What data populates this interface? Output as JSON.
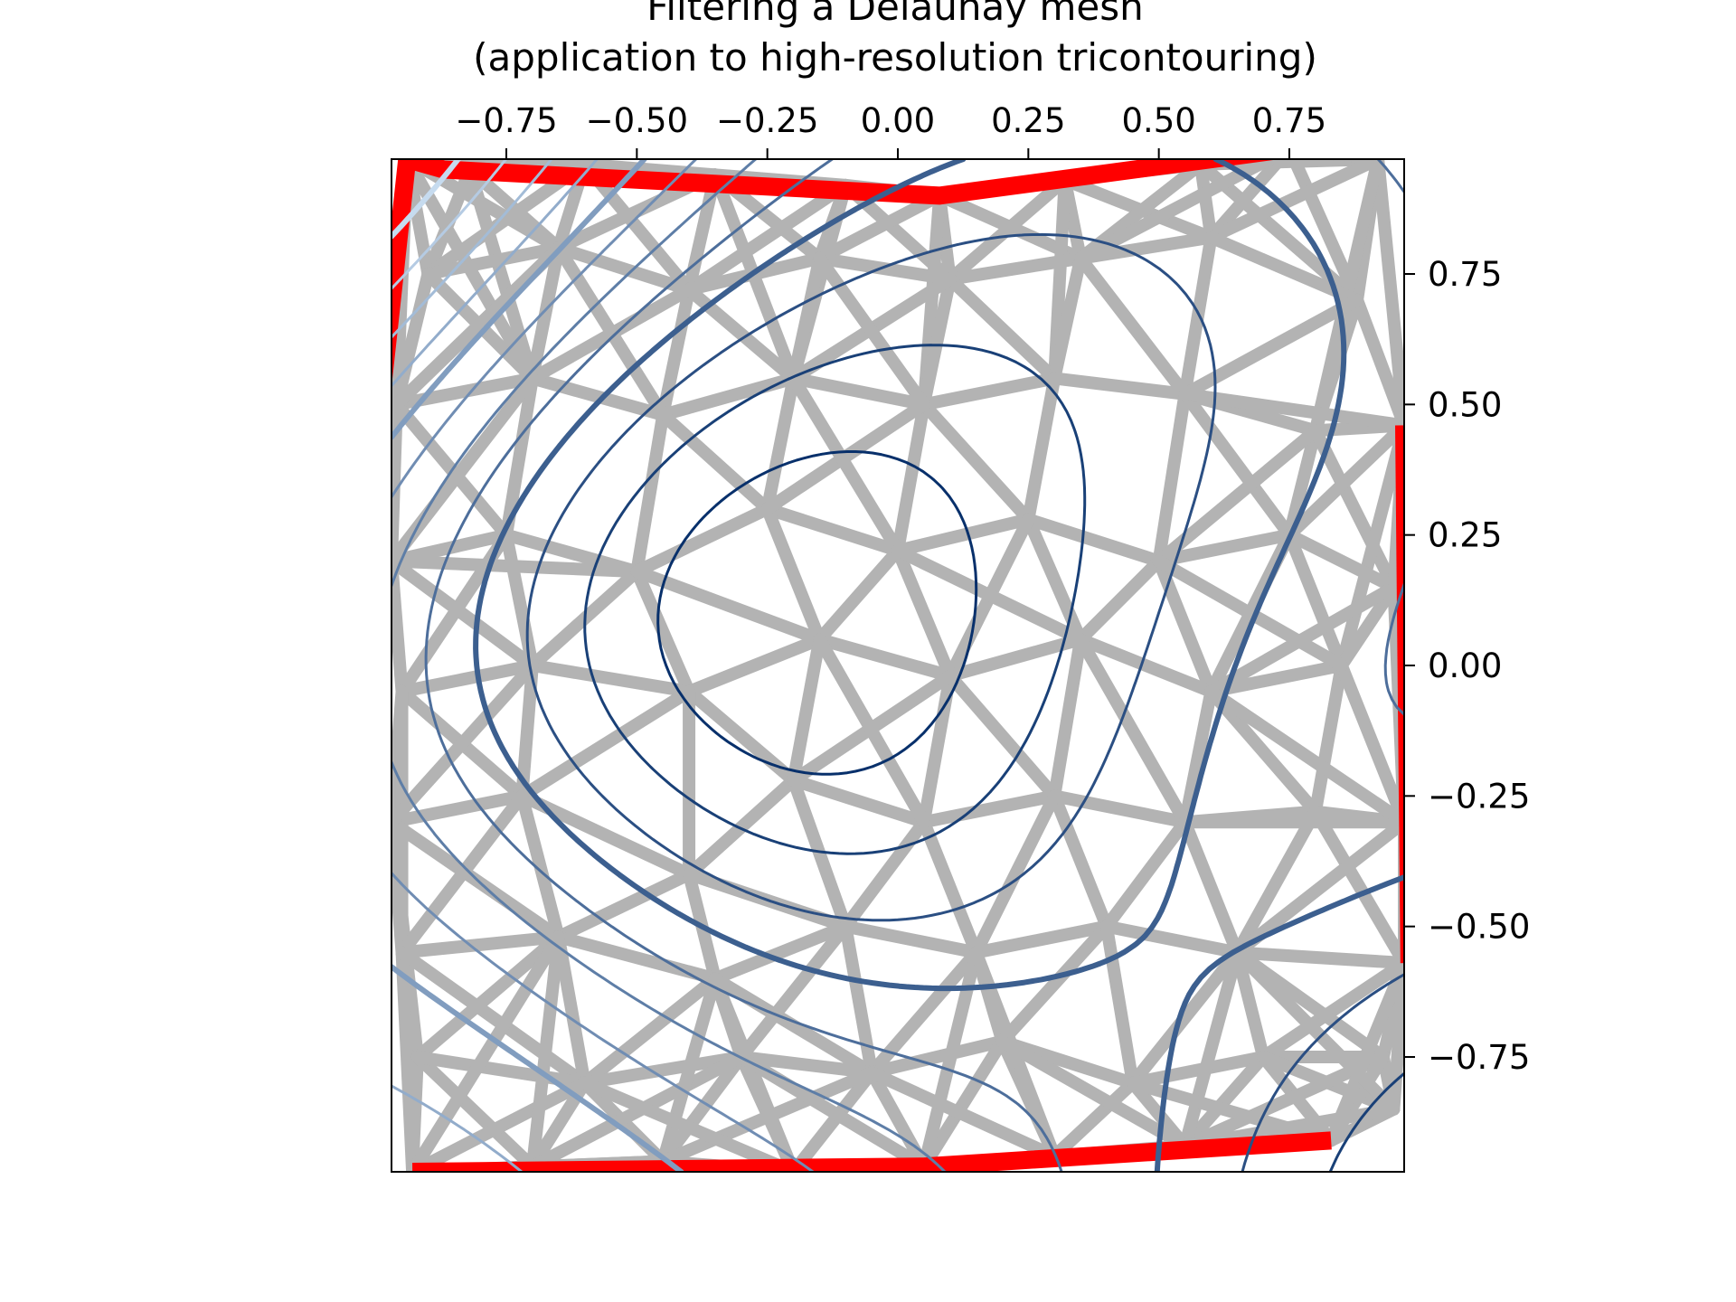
{
  "chart_data": {
    "type": "contour",
    "title_lines": [
      "Filtering a Delaunay mesh",
      "(application to high-resolution tricontouring)"
    ],
    "xlabel": "",
    "ylabel": "",
    "xlim": [
      -0.97,
      0.97
    ],
    "ylim": [
      -0.97,
      0.97
    ],
    "x_axis_position": "top",
    "y_axis_position": "right",
    "xticks": [
      -0.75,
      -0.5,
      -0.25,
      0.0,
      0.25,
      0.5,
      0.75
    ],
    "xtick_labels": [
      "−0.75",
      "−0.50",
      "−0.25",
      "0.00",
      "0.25",
      "0.50",
      "0.75"
    ],
    "yticks": [
      0.75,
      0.5,
      0.25,
      0.0,
      -0.25,
      -0.5,
      -0.75
    ],
    "ytick_labels": [
      "0.75",
      "0.50",
      "0.25",
      "0.00",
      "−0.25",
      "−0.50",
      "−0.75"
    ],
    "grid": false,
    "aspect": "equal",
    "colors": {
      "mesh": "#b3b3b3",
      "masked_edges": "#ff0000",
      "contour_colormap": "Blues",
      "contour_dark": "#08306b",
      "contour_light": "#c6dbef"
    },
    "triangulation": {
      "points": [
        [
          -0.94,
          0.97
        ],
        [
          -0.82,
          0.95
        ],
        [
          -0.6,
          0.96
        ],
        [
          -0.35,
          0.94
        ],
        [
          -0.1,
          0.92
        ],
        [
          0.08,
          0.9
        ],
        [
          0.32,
          0.93
        ],
        [
          0.58,
          0.96
        ],
        [
          0.75,
          0.99
        ],
        [
          0.92,
          0.97
        ],
        [
          -0.9,
          0.75
        ],
        [
          -0.65,
          0.8
        ],
        [
          -0.4,
          0.72
        ],
        [
          -0.15,
          0.78
        ],
        [
          0.1,
          0.74
        ],
        [
          0.35,
          0.78
        ],
        [
          0.6,
          0.82
        ],
        [
          0.88,
          0.7
        ],
        [
          -0.96,
          0.5
        ],
        [
          -0.7,
          0.55
        ],
        [
          -0.45,
          0.48
        ],
        [
          -0.2,
          0.55
        ],
        [
          0.05,
          0.5
        ],
        [
          0.3,
          0.55
        ],
        [
          0.55,
          0.52
        ],
        [
          0.8,
          0.45
        ],
        [
          0.97,
          0.46
        ],
        [
          -0.97,
          0.2
        ],
        [
          -0.75,
          0.25
        ],
        [
          -0.5,
          0.18
        ],
        [
          -0.25,
          0.3
        ],
        [
          0.0,
          0.22
        ],
        [
          0.25,
          0.28
        ],
        [
          0.5,
          0.2
        ],
        [
          0.75,
          0.25
        ],
        [
          0.95,
          0.15
        ],
        [
          -0.95,
          -0.05
        ],
        [
          -0.7,
          0.0
        ],
        [
          -0.4,
          -0.05
        ],
        [
          -0.15,
          0.05
        ],
        [
          0.1,
          -0.02
        ],
        [
          0.35,
          0.05
        ],
        [
          0.6,
          -0.05
        ],
        [
          0.85,
          0.0
        ],
        [
          -0.97,
          -0.3
        ],
        [
          -0.72,
          -0.25
        ],
        [
          -0.4,
          -0.4
        ],
        [
          -0.2,
          -0.22
        ],
        [
          0.05,
          -0.3
        ],
        [
          0.3,
          -0.25
        ],
        [
          0.55,
          -0.3
        ],
        [
          0.8,
          -0.28
        ],
        [
          0.97,
          -0.3
        ],
        [
          -0.95,
          -0.55
        ],
        [
          -0.65,
          -0.52
        ],
        [
          -0.35,
          -0.6
        ],
        [
          -0.1,
          -0.5
        ],
        [
          0.15,
          -0.55
        ],
        [
          0.4,
          -0.5
        ],
        [
          0.65,
          -0.55
        ],
        [
          0.97,
          -0.57
        ],
        [
          -0.92,
          -0.75
        ],
        [
          -0.6,
          -0.8
        ],
        [
          -0.3,
          -0.75
        ],
        [
          -0.05,
          -0.78
        ],
        [
          0.2,
          -0.72
        ],
        [
          0.45,
          -0.8
        ],
        [
          0.7,
          -0.75
        ],
        [
          0.93,
          -0.75
        ],
        [
          -0.93,
          -0.97
        ],
        [
          -0.7,
          -0.96
        ],
        [
          -0.45,
          -0.95
        ],
        [
          -0.2,
          -0.97
        ],
        [
          0.05,
          -0.96
        ],
        [
          0.3,
          -0.94
        ],
        [
          0.55,
          -0.92
        ],
        [
          0.83,
          -0.91
        ],
        [
          0.95,
          -0.85
        ]
      ],
      "masked_boundary_polylines": [
        [
          [
            -0.94,
            0.97
          ],
          [
            -0.87,
            0.95
          ],
          [
            0.08,
            0.9
          ],
          [
            0.75,
            0.99
          ]
        ],
        [
          [
            -0.94,
            0.97
          ],
          [
            -0.99,
            0.51
          ]
        ],
        [
          [
            0.97,
            0.46
          ],
          [
            0.98,
            -0.57
          ]
        ],
        [
          [
            -0.93,
            -0.97
          ],
          [
            0.05,
            -0.96
          ],
          [
            0.83,
            -0.91
          ]
        ]
      ]
    },
    "field_function": "z = (1 - x/2 + x^5 + y^3) * exp(-x^2 - y^2) evaluated on rotated coordinates",
    "contour_levels": [
      -0.7,
      -0.5,
      -0.3,
      -0.1,
      0.1,
      0.3,
      0.5,
      0.7,
      0.9,
      1.1,
      1.3,
      1.5
    ],
    "contour_linewidths": [
      3.0,
      1.5,
      1.5,
      1.5
    ]
  }
}
